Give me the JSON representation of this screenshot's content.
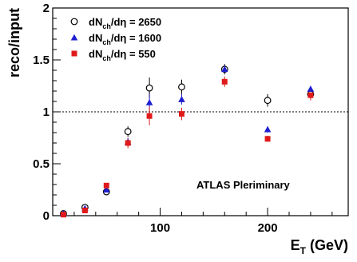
{
  "chart_data": {
    "type": "scatter",
    "xlabel_main": "E",
    "xlabel_sub": "T",
    "xlabel_unit": " (GeV)",
    "ylabel": "reco/input",
    "xlim": [
      0,
      275
    ],
    "ylim": [
      0,
      2
    ],
    "x_ticks": [
      {
        "value": 100,
        "label": "100"
      },
      {
        "value": 200,
        "label": "200"
      }
    ],
    "y_ticks": [
      {
        "value": 0,
        "label": "0"
      },
      {
        "value": 0.5,
        "label": "0.5"
      },
      {
        "value": 1,
        "label": "1"
      },
      {
        "value": 1.5,
        "label": "1.5"
      },
      {
        "value": 2,
        "label": "2"
      }
    ],
    "reference_line": {
      "y": 1,
      "style": "dotted"
    },
    "annotation": "ATLAS Pleriminary",
    "grid": false,
    "legend_position": "top-left",
    "series": [
      {
        "legend": {
          "pre": "dN",
          "sub": "ch",
          "mid": "/d",
          "eta": "η",
          "post": " = 2650"
        },
        "marker": "circle-open",
        "color": "#000000",
        "x": [
          10,
          30,
          50,
          70,
          90,
          120,
          160,
          200,
          240
        ],
        "y": [
          0.02,
          0.08,
          0.23,
          0.81,
          1.23,
          1.24,
          1.41,
          1.11,
          1.17
        ],
        "err": [
          0.01,
          0.015,
          0.02,
          0.05,
          0.1,
          0.07,
          0.05,
          0.06,
          0.04
        ]
      },
      {
        "legend": {
          "pre": "dN",
          "sub": "ch",
          "mid": "/d",
          "eta": "η",
          "post": " = 1600"
        },
        "marker": "triangle",
        "color": "#1f1fd0",
        "x": [
          10,
          30,
          50,
          70,
          90,
          120,
          160,
          200,
          240
        ],
        "y": [
          0.02,
          0.07,
          0.25,
          0.71,
          1.09,
          1.12,
          1.41,
          0.83,
          1.22
        ],
        "err": [
          0.01,
          0.01,
          0.02,
          0.04,
          0.08,
          0.05,
          0.04,
          0.03,
          0.03
        ]
      },
      {
        "legend": {
          "pre": "dN",
          "sub": "ch",
          "mid": "/d",
          "eta": "η",
          "post": " = 550"
        },
        "marker": "square",
        "color": "#e01a1a",
        "x": [
          10,
          30,
          50,
          70,
          90,
          120,
          160,
          200,
          240
        ],
        "y": [
          0.01,
          0.05,
          0.29,
          0.7,
          0.96,
          0.98,
          1.29,
          0.74,
          1.16
        ],
        "err": [
          0.01,
          0.01,
          0.02,
          0.05,
          0.09,
          0.06,
          0.05,
          0.03,
          0.05
        ]
      }
    ]
  }
}
